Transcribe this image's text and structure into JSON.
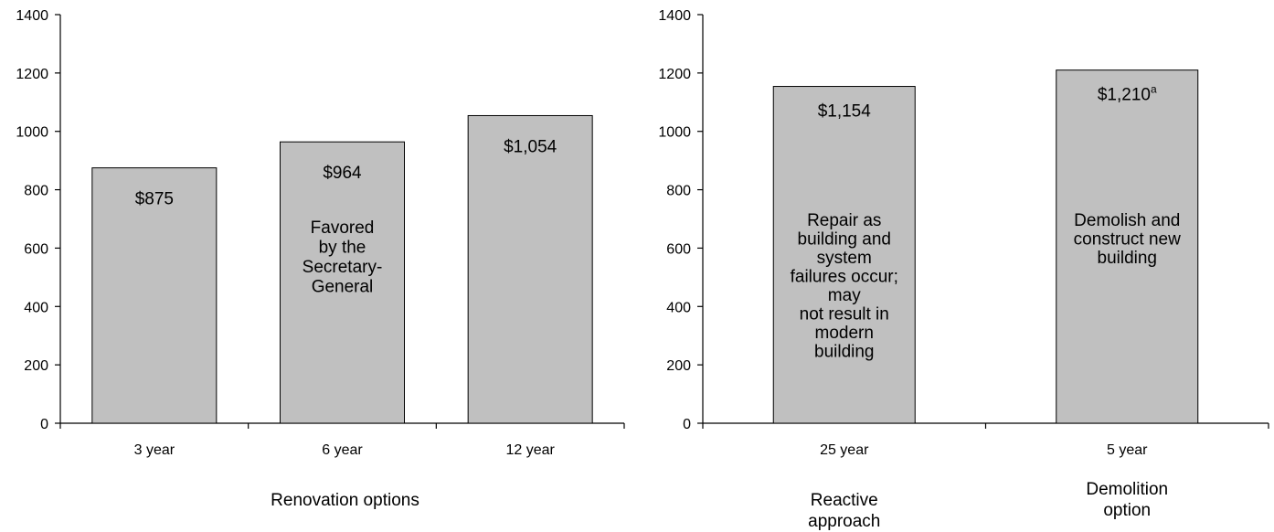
{
  "chart_data": [
    {
      "type": "bar",
      "title": "",
      "xlabel": "Renovation options",
      "ylabel": "",
      "ylim": [
        0,
        1400
      ],
      "yticks": [
        0,
        200,
        400,
        600,
        800,
        1000,
        1200,
        1400
      ],
      "grid": false,
      "categories": [
        "3 year",
        "6 year",
        "12 year"
      ],
      "values": [
        875,
        964,
        1054
      ],
      "value_labels": [
        "$875",
        "$964",
        "$1,054"
      ],
      "annotations": [
        [],
        [
          "Favored",
          "by the",
          "Secretary-",
          "General"
        ],
        []
      ],
      "bar_color": "#c0c0c0"
    },
    {
      "type": "bar",
      "title": "",
      "xlabel": "",
      "ylabel": "",
      "ylim": [
        0,
        1400
      ],
      "yticks": [
        0,
        200,
        400,
        600,
        800,
        1000,
        1200,
        1400
      ],
      "grid": false,
      "categories": [
        "25 year",
        "5 year"
      ],
      "values": [
        1154,
        1210
      ],
      "value_labels": [
        "$1,154",
        "$1,210"
      ],
      "value_superscripts": [
        "",
        "a"
      ],
      "group_labels": [
        [
          "Reactive",
          "approach"
        ],
        [
          "Demolition",
          "option"
        ]
      ],
      "annotations": [
        [
          "Repair as",
          "building and",
          "system",
          "failures occur;",
          "may",
          "not result in",
          "modern",
          "building"
        ],
        [
          "Demolish and",
          "construct new",
          "building"
        ]
      ],
      "bar_color": "#c0c0c0"
    }
  ]
}
